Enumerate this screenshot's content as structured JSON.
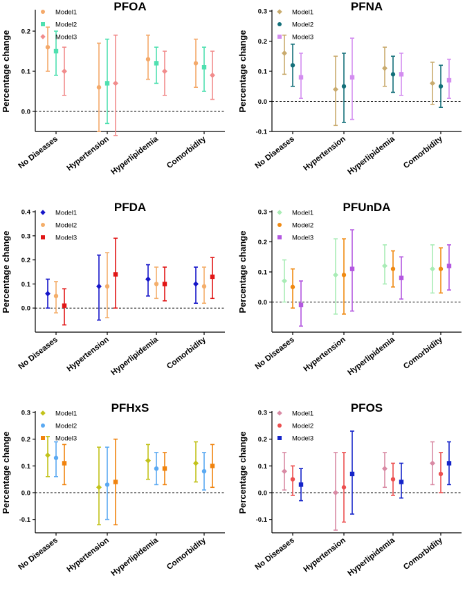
{
  "chart_data": [
    {
      "type": "errorbar",
      "title": "PFOA",
      "ylabel": "Percentage change",
      "ylim": [
        -0.05,
        0.25
      ],
      "yticks": [
        "0.0",
        "0.1",
        "0.2",
        "0.3"
      ],
      "ytick_values": [
        0.0,
        0.1,
        0.2,
        0.3
      ],
      "categories": [
        "No Diseases",
        "Hypertension",
        "Hyperlipidemia",
        "Comorbidity"
      ],
      "reference_line": 0,
      "legend_position": "top-left",
      "series": [
        {
          "name": "Model1",
          "color": "#f4a96a",
          "marker": "circle",
          "values": [
            0.16,
            0.06,
            0.13,
            0.12
          ],
          "lower": [
            0.1,
            -0.05,
            0.08,
            0.06
          ],
          "upper": [
            0.21,
            0.17,
            0.19,
            0.18
          ]
        },
        {
          "name": "Model2",
          "color": "#4fe0b0",
          "marker": "square",
          "values": [
            0.15,
            0.07,
            0.12,
            0.11
          ],
          "lower": [
            0.09,
            -0.03,
            0.07,
            0.05
          ],
          "upper": [
            0.2,
            0.18,
            0.16,
            0.16
          ]
        },
        {
          "name": "Model3",
          "color": "#f18c8c",
          "marker": "diamond",
          "values": [
            0.1,
            0.07,
            0.1,
            0.09
          ],
          "lower": [
            0.04,
            -0.06,
            0.04,
            0.03
          ],
          "upper": [
            0.16,
            0.19,
            0.15,
            0.15
          ]
        }
      ]
    },
    {
      "type": "errorbar",
      "title": "PFNA",
      "ylabel": "Percentage change",
      "ylim": [
        -0.1,
        0.3
      ],
      "yticks": [
        "-0.1",
        "0.0",
        "0.1",
        "0.2",
        "0.3"
      ],
      "ytick_values": [
        -0.1,
        0.0,
        0.1,
        0.2,
        0.3
      ],
      "categories": [
        "No Diseases",
        "Hypertension",
        "Hyperlipidemia",
        "Comorbidity"
      ],
      "reference_line": 0,
      "legend_position": "top-left",
      "series": [
        {
          "name": "Model1",
          "color": "#c9ab6e",
          "marker": "diamond",
          "values": [
            0.16,
            0.04,
            0.11,
            0.06
          ],
          "lower": [
            0.09,
            -0.08,
            0.05,
            -0.01
          ],
          "upper": [
            0.22,
            0.15,
            0.18,
            0.13
          ]
        },
        {
          "name": "Model2",
          "color": "#14707a",
          "marker": "circle",
          "values": [
            0.12,
            0.05,
            0.09,
            0.05
          ],
          "lower": [
            0.05,
            -0.07,
            0.03,
            -0.02
          ],
          "upper": [
            0.19,
            0.16,
            0.15,
            0.12
          ]
        },
        {
          "name": "Model3",
          "color": "#d38df0",
          "marker": "square",
          "values": [
            0.08,
            0.08,
            0.09,
            0.07
          ],
          "lower": [
            0.01,
            -0.06,
            0.02,
            0.01
          ],
          "upper": [
            0.16,
            0.21,
            0.16,
            0.14
          ]
        }
      ]
    },
    {
      "type": "errorbar",
      "title": "PFDA",
      "ylabel": "Percentage change",
      "ylim": [
        -0.1,
        0.4
      ],
      "yticks": [
        "0.0",
        "0.1",
        "0.2",
        "0.3",
        "0.4"
      ],
      "ytick_values": [
        0.0,
        0.1,
        0.2,
        0.3,
        0.4
      ],
      "categories": [
        "No Diseases",
        "Hypertension",
        "Hyperlipidemia",
        "Comorbidity"
      ],
      "reference_line": 0,
      "legend_position": "top-left",
      "series": [
        {
          "name": "Model1",
          "color": "#1616c9",
          "marker": "diamond",
          "values": [
            0.06,
            0.09,
            0.12,
            0.1
          ],
          "lower": [
            0.0,
            -0.05,
            0.05,
            0.02
          ],
          "upper": [
            0.12,
            0.22,
            0.18,
            0.17
          ]
        },
        {
          "name": "Model2",
          "color": "#f4ae6a",
          "marker": "circle",
          "values": [
            0.05,
            0.09,
            0.1,
            0.09
          ],
          "lower": [
            -0.02,
            -0.04,
            0.04,
            0.02
          ],
          "upper": [
            0.11,
            0.23,
            0.17,
            0.17
          ]
        },
        {
          "name": "Model3",
          "color": "#e11616",
          "marker": "square",
          "values": [
            0.01,
            0.14,
            0.1,
            0.13
          ],
          "lower": [
            -0.07,
            0.0,
            0.03,
            0.04
          ],
          "upper": [
            0.08,
            0.29,
            0.17,
            0.21
          ]
        }
      ]
    },
    {
      "type": "errorbar",
      "title": "PFUnDA",
      "ylabel": "Percentage change",
      "ylim": [
        -0.1,
        0.3
      ],
      "yticks": [
        "0.0",
        "0.1",
        "0.2",
        "0.3"
      ],
      "ytick_values": [
        0.0,
        0.1,
        0.2,
        0.3
      ],
      "categories": [
        "No Diseases",
        "Hypertension",
        "Hyperlipidemia",
        "Comorbidity"
      ],
      "reference_line": 0,
      "legend_position": "top-left",
      "series": [
        {
          "name": "Model1",
          "color": "#a9ecb6",
          "marker": "diamond",
          "values": [
            0.07,
            0.09,
            0.12,
            0.11
          ],
          "lower": [
            0.0,
            -0.04,
            0.06,
            0.03
          ],
          "upper": [
            0.14,
            0.21,
            0.19,
            0.19
          ]
        },
        {
          "name": "Model2",
          "color": "#f08a12",
          "marker": "circle",
          "values": [
            0.05,
            0.09,
            0.11,
            0.11
          ],
          "lower": [
            -0.02,
            -0.04,
            0.05,
            0.03
          ],
          "upper": [
            0.11,
            0.21,
            0.17,
            0.18
          ]
        },
        {
          "name": "Model3",
          "color": "#b357e0",
          "marker": "square",
          "values": [
            -0.01,
            0.11,
            0.08,
            0.12
          ],
          "lower": [
            -0.08,
            -0.03,
            0.01,
            0.04
          ],
          "upper": [
            0.07,
            0.24,
            0.15,
            0.19
          ]
        }
      ]
    },
    {
      "type": "errorbar",
      "title": "PFHxS",
      "ylabel": "Percentage change",
      "ylim": [
        -0.15,
        0.3
      ],
      "yticks": [
        "-0.1",
        "0.0",
        "0.1",
        "0.2",
        "0.3"
      ],
      "ytick_values": [
        -0.1,
        0.0,
        0.1,
        0.2,
        0.3
      ],
      "categories": [
        "No Diseases",
        "Hypertension",
        "Hyperlipidemia",
        "Comorbidity"
      ],
      "reference_line": 0,
      "legend_position": "top-left",
      "series": [
        {
          "name": "Model1",
          "color": "#c2c21a",
          "marker": "diamond",
          "values": [
            0.14,
            0.02,
            0.12,
            0.11
          ],
          "lower": [
            0.06,
            -0.12,
            0.05,
            0.04
          ],
          "upper": [
            0.21,
            0.17,
            0.18,
            0.19
          ]
        },
        {
          "name": "Model2",
          "color": "#5aa9f2",
          "marker": "circle",
          "values": [
            0.13,
            0.03,
            0.09,
            0.08
          ],
          "lower": [
            0.06,
            -0.1,
            0.03,
            0.01
          ],
          "upper": [
            0.19,
            0.17,
            0.15,
            0.15
          ]
        },
        {
          "name": "Model3",
          "color": "#f0830e",
          "marker": "square",
          "values": [
            0.11,
            0.04,
            0.09,
            0.1
          ],
          "lower": [
            0.03,
            -0.12,
            0.03,
            0.02
          ],
          "upper": [
            0.18,
            0.2,
            0.15,
            0.18
          ]
        }
      ]
    },
    {
      "type": "errorbar",
      "title": "PFOS",
      "ylabel": "Percentage change",
      "ylim": [
        -0.15,
        0.3
      ],
      "yticks": [
        "-0.1",
        "0.0",
        "0.1",
        "0.2",
        "0.3"
      ],
      "ytick_values": [
        -0.1,
        0.0,
        0.1,
        0.2,
        0.3
      ],
      "categories": [
        "No Diseases",
        "Hypertension",
        "Hyperlipidemia",
        "Comorbidity"
      ],
      "reference_line": 0,
      "legend_position": "top-left",
      "series": [
        {
          "name": "Model1",
          "color": "#d98aa4",
          "marker": "diamond",
          "values": [
            0.08,
            0.0,
            0.09,
            0.11
          ],
          "lower": [
            0.01,
            -0.14,
            0.02,
            0.03
          ],
          "upper": [
            0.15,
            0.15,
            0.15,
            0.19
          ]
        },
        {
          "name": "Model2",
          "color": "#ec4f4f",
          "marker": "circle",
          "values": [
            0.05,
            0.02,
            0.05,
            0.07
          ],
          "lower": [
            -0.01,
            -0.11,
            -0.01,
            0.0
          ],
          "upper": [
            0.1,
            0.15,
            0.11,
            0.15
          ]
        },
        {
          "name": "Model3",
          "color": "#1524c9",
          "marker": "square",
          "values": [
            0.03,
            0.07,
            0.04,
            0.11
          ],
          "lower": [
            -0.03,
            -0.08,
            -0.02,
            0.03
          ],
          "upper": [
            0.09,
            0.23,
            0.11,
            0.19
          ]
        }
      ]
    }
  ]
}
